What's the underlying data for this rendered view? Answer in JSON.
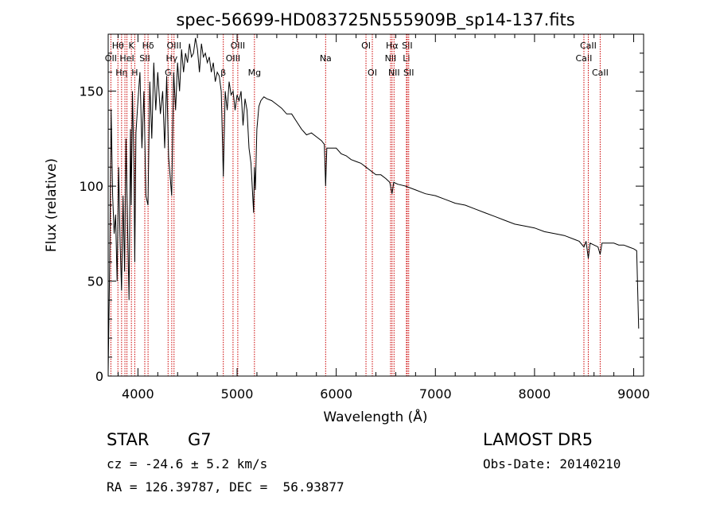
{
  "chart_data": {
    "type": "line",
    "title": "spec-56699-HD083725N555909B_sp14-137.fits",
    "xlabel": "Wavelength (Å)",
    "ylabel": "Flux (relative)",
    "xlim": [
      3700,
      9100
    ],
    "ylim": [
      0,
      180
    ],
    "xticks": [
      4000,
      5000,
      6000,
      7000,
      8000,
      9000
    ],
    "yticks": [
      0,
      50,
      100,
      150
    ],
    "grid": false,
    "line_color": "#000000",
    "marker_color": "#cc0000",
    "series": [
      {
        "x": [
          3700,
          3715,
          3730,
          3745,
          3760,
          3775,
          3790,
          3805,
          3820,
          3835,
          3850,
          3865,
          3880,
          3895,
          3910,
          3925,
          3933,
          3945,
          3960,
          3968,
          3980,
          4000,
          4020,
          4040,
          4060,
          4080,
          4101,
          4120,
          4140,
          4160,
          4180,
          4200,
          4226,
          4250,
          4270,
          4290,
          4310,
          4340,
          4360,
          4380,
          4400,
          4420,
          4440,
          4460,
          4480,
          4500,
          4520,
          4540,
          4560,
          4580,
          4600,
          4620,
          4640,
          4660,
          4680,
          4700,
          4720,
          4740,
          4760,
          4780,
          4800,
          4820,
          4840,
          4861,
          4880,
          4900,
          4920,
          4940,
          4960,
          4980,
          5000,
          5020,
          5040,
          5060,
          5080,
          5100,
          5120,
          5140,
          5167,
          5175,
          5184,
          5200,
          5220,
          5240,
          5270,
          5300,
          5350,
          5400,
          5450,
          5500,
          5550,
          5600,
          5650,
          5700,
          5750,
          5800,
          5850,
          5880,
          5893,
          5905,
          5950,
          6000,
          6050,
          6100,
          6150,
          6200,
          6250,
          6300,
          6350,
          6400,
          6450,
          6500,
          6540,
          6563,
          6580,
          6620,
          6700,
          6800,
          6900,
          7000,
          7100,
          7200,
          7300,
          7400,
          7500,
          7600,
          7700,
          7800,
          7900,
          8000,
          8100,
          8200,
          8300,
          8400,
          8450,
          8498,
          8520,
          8542,
          8560,
          8600,
          8640,
          8662,
          8680,
          8750,
          8800,
          8850,
          8900,
          8950,
          9000,
          9030,
          9050
        ],
        "y": [
          2,
          60,
          140,
          95,
          75,
          85,
          50,
          110,
          70,
          45,
          95,
          55,
          125,
          80,
          40,
          130,
          90,
          150,
          110,
          60,
          128,
          145,
          160,
          120,
          150,
          95,
          90,
          155,
          125,
          165,
          140,
          160,
          138,
          150,
          120,
          158,
          115,
          95,
          160,
          140,
          165,
          150,
          172,
          160,
          170,
          165,
          175,
          168,
          170,
          178,
          172,
          160,
          175,
          168,
          170,
          165,
          168,
          160,
          165,
          155,
          160,
          158,
          150,
          105,
          150,
          140,
          155,
          148,
          150,
          140,
          148,
          145,
          150,
          132,
          146,
          140,
          120,
          112,
          86,
          110,
          98,
          130,
          142,
          145,
          147,
          146,
          145,
          143,
          141,
          138,
          138,
          134,
          130,
          127,
          128,
          126,
          124,
          122,
          100,
          120,
          120,
          120,
          117,
          116,
          114,
          113,
          112,
          110,
          108,
          106,
          106,
          104,
          102,
          96,
          102,
          101,
          100,
          98,
          96,
          95,
          93,
          91,
          90,
          88,
          86,
          84,
          82,
          80,
          79,
          78,
          76,
          75,
          74,
          72,
          71,
          68,
          71,
          62,
          70,
          69,
          68,
          64,
          70,
          70,
          70,
          69,
          69,
          68,
          67,
          66,
          25
        ]
      }
    ],
    "line_markers": [
      {
        "x": 3727,
        "label": "OII",
        "row": 2
      },
      {
        "x": 3798,
        "label": "Hθ",
        "row": 1
      },
      {
        "x": 3835,
        "label": "Hη",
        "row": 3
      },
      {
        "x": 3869,
        "label": "",
        "row": 0
      },
      {
        "x": 3889,
        "label": "HeI",
        "row": 2
      },
      {
        "x": 3934,
        "label": "K",
        "row": 1
      },
      {
        "x": 3968,
        "label": "H",
        "row": 3
      },
      {
        "x": 4069,
        "label": "SII",
        "row": 2
      },
      {
        "x": 4102,
        "label": "Hδ",
        "row": 1
      },
      {
        "x": 4304,
        "label": "G",
        "row": 3
      },
      {
        "x": 4341,
        "label": "Hγ",
        "row": 2
      },
      {
        "x": 4364,
        "label": "OIII",
        "row": 1
      },
      {
        "x": 4861,
        "label": "β",
        "row": 3
      },
      {
        "x": 4959,
        "label": "OIII",
        "row": 2
      },
      {
        "x": 5007,
        "label": "OIII",
        "row": 1
      },
      {
        "x": 5175,
        "label": "Mg",
        "row": 3
      },
      {
        "x": 5893,
        "label": "Na",
        "row": 2
      },
      {
        "x": 6300,
        "label": "OI",
        "row": 1
      },
      {
        "x": 6364,
        "label": "OI",
        "row": 3
      },
      {
        "x": 6548,
        "label": "NII",
        "row": 2
      },
      {
        "x": 6563,
        "label": "Hα",
        "row": 1
      },
      {
        "x": 6583,
        "label": "NII",
        "row": 3
      },
      {
        "x": 6708,
        "label": "Li",
        "row": 2
      },
      {
        "x": 6716,
        "label": "SII",
        "row": 1
      },
      {
        "x": 6731,
        "label": "SII",
        "row": 3
      },
      {
        "x": 8498,
        "label": "CaII",
        "row": 2
      },
      {
        "x": 8542,
        "label": "CaII",
        "row": 1
      },
      {
        "x": 8662,
        "label": "CaII",
        "row": 3
      }
    ]
  },
  "info": {
    "obj_class": "STAR",
    "subclass": "G7",
    "survey": "LAMOST DR5",
    "cz": "cz = -24.6 ± 5.2 km/s",
    "obs_date": "Obs-Date: 20140210",
    "radec": "RA = 126.39787, DEC =  56.93877"
  }
}
